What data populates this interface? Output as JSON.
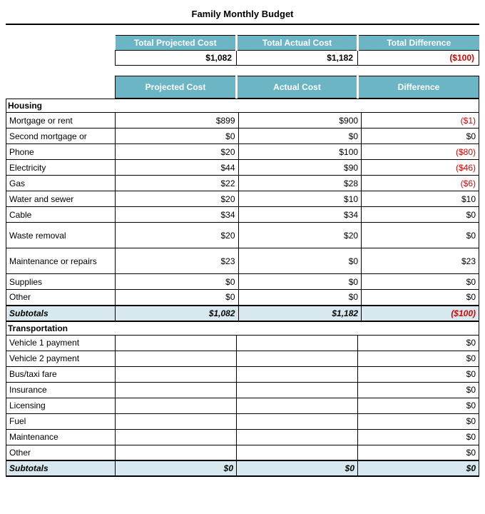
{
  "title": "Family Monthly Budget",
  "colors": {
    "header_bg": "#6bb5c4",
    "header_text": "#ffffff",
    "subtotal_bg": "#d7e9ef",
    "negative": "#d90000",
    "border": "#000000"
  },
  "summary": {
    "headers": [
      "Total Projected Cost",
      "Total Actual Cost",
      "Total Difference"
    ],
    "values": [
      "$1,082",
      "$1,182",
      "($100)"
    ],
    "value_negative": [
      false,
      false,
      true
    ]
  },
  "column_headers": [
    "Projected Cost",
    "Actual Cost",
    "Difference"
  ],
  "sections": [
    {
      "name": "Housing",
      "rows": [
        {
          "label": "Mortgage or rent",
          "projected": "$899",
          "actual": "$900",
          "diff": "($1)",
          "diff_neg": true
        },
        {
          "label": "Second mortgage or",
          "projected": "$0",
          "actual": "$0",
          "diff": "$0",
          "diff_neg": false
        },
        {
          "label": "Phone",
          "projected": "$20",
          "actual": "$100",
          "diff": "($80)",
          "diff_neg": true
        },
        {
          "label": "Electricity",
          "projected": "$44",
          "actual": "$90",
          "diff": "($46)",
          "diff_neg": true
        },
        {
          "label": "Gas",
          "projected": "$22",
          "actual": "$28",
          "diff": "($6)",
          "diff_neg": true
        },
        {
          "label": "Water and sewer",
          "projected": "$20",
          "actual": "$10",
          "diff": "$10",
          "diff_neg": false
        },
        {
          "label": "Cable",
          "projected": "$34",
          "actual": "$34",
          "diff": "$0",
          "diff_neg": false
        },
        {
          "label": "Waste removal",
          "projected": "$20",
          "actual": "$20",
          "diff": "$0",
          "diff_neg": false,
          "tall": true
        },
        {
          "label": "Maintenance or repairs",
          "projected": "$23",
          "actual": "$0",
          "diff": "$23",
          "diff_neg": false,
          "tall": true
        },
        {
          "label": "Supplies",
          "projected": "$0",
          "actual": "$0",
          "diff": "$0",
          "diff_neg": false
        },
        {
          "label": "Other",
          "projected": "$0",
          "actual": "$0",
          "diff": "$0",
          "diff_neg": false
        }
      ],
      "subtotal": {
        "label": "Subtotals",
        "projected": "$1,082",
        "actual": "$1,182",
        "diff": "($100)",
        "diff_neg": true
      }
    },
    {
      "name": "Transportation",
      "rows": [
        {
          "label": "Vehicle 1 payment",
          "projected": "",
          "actual": "",
          "diff": "$0",
          "diff_neg": false
        },
        {
          "label": "Vehicle 2 payment",
          "projected": "",
          "actual": "",
          "diff": "$0",
          "diff_neg": false
        },
        {
          "label": "Bus/taxi fare",
          "projected": "",
          "actual": "",
          "diff": "$0",
          "diff_neg": false
        },
        {
          "label": "Insurance",
          "projected": "",
          "actual": "",
          "diff": "$0",
          "diff_neg": false
        },
        {
          "label": "Licensing",
          "projected": "",
          "actual": "",
          "diff": "$0",
          "diff_neg": false
        },
        {
          "label": "Fuel",
          "projected": "",
          "actual": "",
          "diff": "$0",
          "diff_neg": false
        },
        {
          "label": "Maintenance",
          "projected": "",
          "actual": "",
          "diff": "$0",
          "diff_neg": false
        },
        {
          "label": "Other",
          "projected": "",
          "actual": "",
          "diff": "$0",
          "diff_neg": false
        }
      ],
      "subtotal": {
        "label": "Subtotals",
        "projected": "$0",
        "actual": "$0",
        "diff": "$0",
        "diff_neg": false
      }
    }
  ]
}
